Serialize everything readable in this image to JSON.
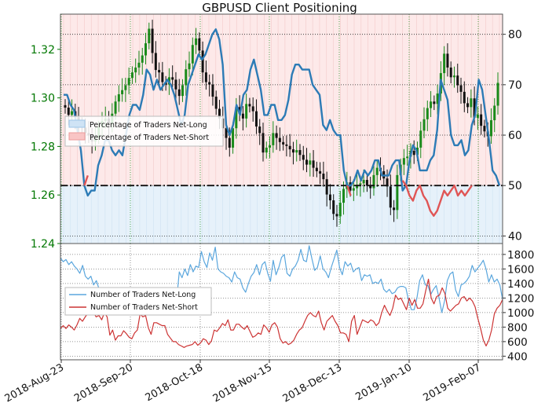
{
  "chart_data": [
    {
      "type": "candlestick",
      "title": "GBPUSD Client Positioning",
      "x_tick_labels": [
        "2018-Aug-23",
        "2018-Sep-20",
        "2018-Oct-18",
        "2018-Nov-15",
        "2018-Dec-13",
        "2019-Jan-10",
        "2019-Feb-07"
      ],
      "left_axis": {
        "ticks": [
          1.24,
          1.26,
          1.28,
          1.3,
          1.32
        ],
        "tick_labels": [
          "1.24",
          "1.26",
          "1.28",
          "1.30",
          "1.32"
        ],
        "range": [
          1.24,
          1.3345
        ],
        "color": "#007700"
      },
      "right_axis": {
        "ticks": [
          40,
          50,
          60,
          70,
          80
        ],
        "tick_labels": [
          "40",
          "50",
          "60",
          "70",
          "80"
        ],
        "range": [
          38.5,
          84
        ]
      },
      "reference_line": {
        "axis": "right",
        "value": 50,
        "style": "dash-dot"
      },
      "candles_close": [
        1.296,
        1.293,
        1.2945,
        1.292,
        1.2895,
        1.2878,
        1.2855,
        1.2845,
        1.282,
        1.2835,
        1.288,
        1.2905,
        1.2915,
        1.2895,
        1.2935,
        1.2985,
        1.3015,
        1.3032,
        1.3052,
        1.3082,
        1.3105,
        1.3125,
        1.3145,
        1.3175,
        1.3225,
        1.3285,
        1.3185,
        1.3115,
        1.3105,
        1.3065,
        1.3055,
        1.3085,
        1.3075,
        1.3035,
        1.3008,
        1.3052,
        1.3118,
        1.3142,
        1.3218,
        1.3245,
        1.3195,
        1.3105,
        1.3065,
        1.3055,
        1.3005,
        1.2955,
        1.2915,
        1.2875,
        1.2835,
        1.2795,
        1.2875,
        1.2962,
        1.2935,
        1.2915,
        1.2975,
        1.2965,
        1.2945,
        1.2882,
        1.2855,
        1.2775,
        1.2795,
        1.2805,
        1.2855,
        1.2835,
        1.2818,
        1.2808,
        1.2802,
        1.2788,
        1.2775,
        1.2785,
        1.2765,
        1.2745,
        1.2725,
        1.2742,
        1.2712,
        1.2698,
        1.2688,
        1.2665,
        1.2602,
        1.2578,
        1.2522,
        1.2512,
        1.2568,
        1.2625,
        1.2652,
        1.2618,
        1.2628,
        1.2642,
        1.2648,
        1.2662,
        1.2638,
        1.2628,
        1.2682,
        1.2712,
        1.2698,
        1.2668,
        1.2635,
        1.2548,
        1.2538,
        1.2682,
        1.2725,
        1.2752,
        1.2758,
        1.2782,
        1.2765,
        1.2795,
        1.2865,
        1.2912,
        1.2958,
        1.2985,
        1.2975,
        1.3018,
        1.3102,
        1.3182,
        1.3125,
        1.3085,
        1.3092,
        1.3052,
        1.3025,
        1.2978,
        1.2962,
        1.2998,
        1.2918,
        1.2932,
        1.2885,
        1.2862,
        1.2842,
        1.2908,
        1.2968,
        1.3062
      ],
      "percent_net_long": [
        68,
        68,
        66,
        65,
        61,
        57,
        50,
        48,
        49,
        49,
        54,
        56,
        59,
        59,
        57,
        56,
        57,
        56,
        60,
        64,
        66,
        66,
        65,
        68,
        73,
        72,
        69,
        71,
        69,
        70,
        71,
        70,
        68,
        65,
        62,
        64,
        70,
        72,
        74,
        76,
        75,
        76,
        78,
        80,
        81,
        79,
        74,
        62,
        60,
        62,
        66,
        64,
        68,
        69,
        73,
        75,
        72,
        69,
        64,
        64,
        66,
        66,
        63,
        63,
        64,
        67,
        72,
        74,
        74,
        73,
        73,
        73,
        70,
        69,
        68,
        62,
        61,
        63,
        61,
        60,
        60,
        53,
        50,
        50,
        51,
        53,
        51,
        53,
        52,
        53,
        55,
        55,
        52,
        52,
        52,
        54,
        55,
        55,
        49,
        50,
        55,
        58,
        57,
        53,
        53,
        53,
        55,
        56,
        61,
        71,
        69,
        67,
        60,
        58,
        58,
        59,
        56,
        57,
        62,
        64,
        71,
        69,
        64,
        59,
        53,
        52,
        50
      ],
      "percent_net_short": [
        null,
        null,
        null,
        null,
        null,
        null,
        50,
        52,
        null,
        null,
        null,
        null,
        null,
        null,
        null,
        null,
        null,
        null,
        null,
        null,
        null,
        null,
        null,
        null,
        null,
        null,
        null,
        null,
        null,
        null,
        null,
        null,
        null,
        null,
        null,
        null,
        null,
        null,
        null,
        null,
        null,
        null,
        null,
        null,
        null,
        null,
        null,
        null,
        null,
        null,
        null,
        null,
        null,
        null,
        null,
        null,
        null,
        null,
        null,
        null,
        null,
        null,
        null,
        null,
        null,
        null,
        null,
        null,
        null,
        null,
        null,
        null,
        null,
        null,
        null,
        null,
        null,
        null,
        null,
        null,
        null,
        null,
        50,
        48,
        null,
        null,
        null,
        null,
        null,
        null,
        null,
        null,
        null,
        null,
        null,
        null,
        null,
        null,
        51,
        50,
        48,
        47,
        49,
        50,
        48,
        47,
        45,
        44,
        45,
        47,
        49,
        48,
        49,
        50,
        48,
        49,
        48,
        49,
        50,
        null,
        null,
        null,
        null,
        null,
        null,
        null,
        null
      ],
      "legend": {
        "placement": "center-left",
        "entries": [
          "Percentage of Traders Net-Long",
          "Percentage of Traders Net-Short"
        ]
      }
    },
    {
      "type": "line",
      "right_axis": {
        "ticks": [
          400,
          600,
          800,
          1000,
          1200,
          1400,
          1600,
          1800
        ],
        "tick_labels": [
          "400",
          "600",
          "800",
          "1000",
          "1200",
          "1400",
          "1600",
          "1800"
        ],
        "range": [
          350,
          1950
        ]
      },
      "series": [
        {
          "name": "Number of Traders Net-Long",
          "color": "#5aa6dd",
          "values": [
            1750,
            1700,
            1730,
            1660,
            1700,
            1640,
            1600,
            1540,
            1650,
            1500,
            1460,
            1500,
            1380,
            1440,
            1320,
            1290,
            1300,
            1250,
            1160,
            1120,
            1080,
            1160,
            1100,
            1220,
            1310,
            1260,
            1080,
            1180,
            1170,
            1200,
            1160,
            1240,
            1190,
            1270,
            1280,
            1210,
            1120,
            1110,
            1150,
            1200,
            1220,
            1250,
            1160,
            1560,
            1480,
            1600,
            1510,
            1660,
            1560,
            1640,
            1620,
            1840,
            1700,
            1620,
            1820,
            1720,
            1900,
            1600,
            1560,
            1540,
            1500,
            1480,
            1420,
            1560,
            1480,
            1460,
            1340,
            1280,
            1400,
            1500,
            1550,
            1660,
            1520,
            1660,
            1700,
            1540,
            1430,
            1720,
            1520,
            1620,
            1760,
            1800,
            1540,
            1500,
            1600,
            1640,
            1720,
            1870,
            1720,
            1700,
            1920,
            1740,
            1580,
            1620,
            1780,
            1600,
            1560,
            1480,
            1620,
            1740,
            1860,
            1620,
            1520,
            1700,
            1640,
            1680,
            1560,
            1600,
            1620,
            1440,
            1520,
            1500,
            1520,
            1400,
            1420,
            1400,
            1460,
            1320,
            1280,
            1320,
            1260,
            1280,
            1340,
            1360,
            1360,
            1340,
            1160,
            1040,
            1040,
            1200,
            1440,
            1520,
            1380,
            1370,
            1250,
            1320,
            1370,
            1200,
            1000,
            1160,
            1440,
            1530,
            1560,
            1310,
            1220,
            1380,
            1400,
            1440,
            1500,
            1650,
            1560,
            1610,
            1660,
            1720,
            1600,
            1420,
            1520,
            1420,
            1460,
            1380,
            1180
          ]
        },
        {
          "name": "Number of Traders Net-Short",
          "color": "#cc3333",
          "values": [
            780,
            820,
            780,
            830,
            800,
            760,
            830,
            920,
            880,
            940,
            990,
            990,
            1000,
            940,
            960,
            900,
            1000,
            940,
            690,
            760,
            620,
            680,
            680,
            750,
            710,
            660,
            640,
            720,
            760,
            980,
            940,
            960,
            790,
            700,
            860,
            860,
            840,
            820,
            820,
            700,
            650,
            600,
            600,
            560,
            540,
            520,
            540,
            550,
            560,
            600,
            550,
            580,
            640,
            620,
            560,
            610,
            760,
            740,
            790,
            850,
            820,
            900,
            760,
            760,
            840,
            840,
            800,
            770,
            820,
            740,
            660,
            680,
            720,
            700,
            830,
            790,
            730,
            830,
            860,
            800,
            640,
            580,
            600,
            560,
            580,
            620,
            700,
            760,
            790,
            880,
            960,
            1000,
            960,
            940,
            1020,
            860,
            760,
            880,
            920,
            960,
            880,
            820,
            720,
            720,
            700,
            600,
            880,
            960,
            700,
            800,
            900,
            880,
            860,
            900,
            880,
            820,
            860,
            1000,
            1100,
            1020,
            960,
            1060,
            1240,
            1180,
            1200,
            1120,
            1040,
            1200,
            1100,
            1180,
            1060,
            1060,
            1120,
            1300,
            1460,
            1200,
            1120,
            1220,
            1240,
            1340,
            1260,
            1060,
            1020,
            1060,
            1100,
            1120,
            1200,
            1220,
            1160,
            1200,
            1160,
            1080,
            920,
            780,
            620,
            540,
            620,
            760,
            980,
            1060,
            1100,
            1180
          ]
        }
      ],
      "legend": {
        "placement": "center-left",
        "entries": [
          "Number of Traders Net-Long",
          "Number of Traders Net-Short"
        ]
      }
    }
  ]
}
